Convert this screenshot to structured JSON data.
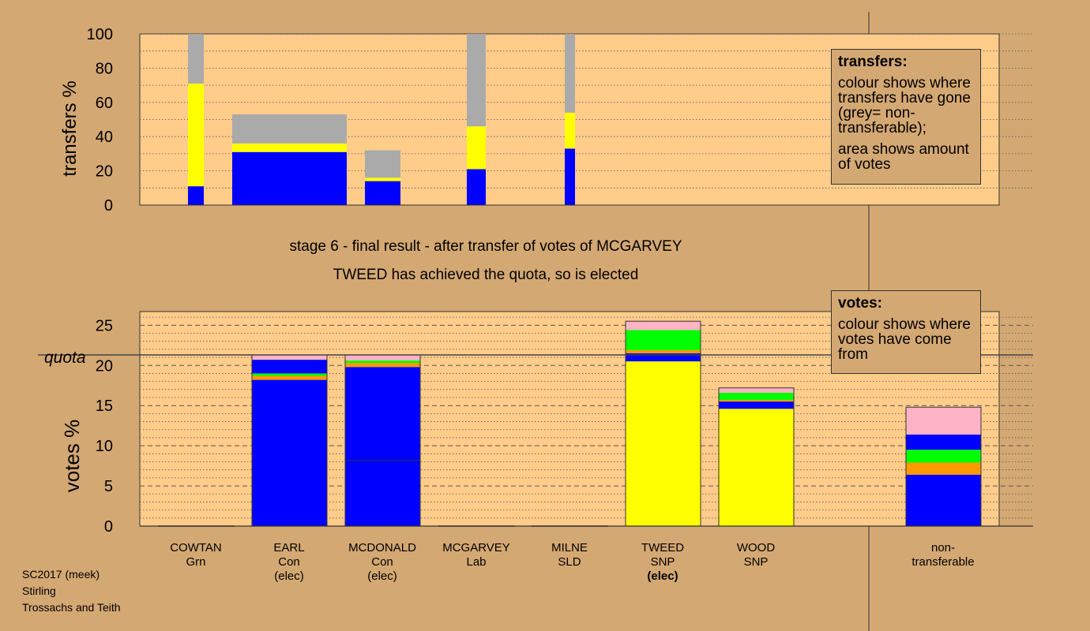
{
  "colors": {
    "background": "#d4a873",
    "plot_area": "#ffcc8a",
    "yellow": "#ffff00",
    "blue": "#0000ff",
    "grey": "#aaaaaa",
    "orange": "#ff9900",
    "green": "#00ff00",
    "pink": "#ffb3c6"
  },
  "stage_text": {
    "line1": "stage 6 - final result - after transfer of votes of MCGARVEY",
    "line2": "TWEED has achieved the quota, so is elected"
  },
  "legends": {
    "transfers": {
      "title": "transfers:",
      "text1": "colour shows where transfers have gone (grey= non-transferable);",
      "text2": "area shows amount of votes"
    },
    "votes": {
      "title": "votes:",
      "text1": "colour shows where votes have come from"
    }
  },
  "candidates": [
    {
      "name": "COWTAN",
      "party": "Grn",
      "status": ""
    },
    {
      "name": "EARL",
      "party": "Con",
      "status": "(elec)"
    },
    {
      "name": "MCDONALD",
      "party": "Con",
      "status": "(elec)"
    },
    {
      "name": "MCGARVEY",
      "party": "Lab",
      "status": ""
    },
    {
      "name": "MILNE",
      "party": "SLD",
      "status": ""
    },
    {
      "name": "TWEED",
      "party": "SNP",
      "status": "(elec)"
    },
    {
      "name": "WOOD",
      "party": "SNP",
      "status": ""
    },
    {
      "name": "non-",
      "party": "transferable",
      "status": ""
    }
  ],
  "footer": {
    "line1": "SC2017 (meek)",
    "line2": "Stirling",
    "line3": "Trossachs and Teith"
  },
  "chart_data": [
    {
      "type": "bar",
      "ylabel": "transfers %",
      "ylim": [
        0,
        100
      ],
      "yticks": [
        0,
        20,
        40,
        60,
        80,
        100
      ],
      "bars": [
        {
          "segments": [
            [
              "blue",
              0,
              11
            ],
            [
              "yellow",
              11,
              71
            ],
            [
              "grey",
              71,
              100
            ]
          ]
        },
        {
          "segments": [
            [
              "blue",
              0,
              31
            ],
            [
              "yellow",
              31,
              36
            ],
            [
              "grey",
              36,
              53
            ]
          ]
        },
        {
          "segments": [
            [
              "blue",
              0,
              14
            ],
            [
              "yellow",
              14,
              16
            ],
            [
              "grey",
              16,
              32
            ]
          ]
        },
        {
          "segments": [
            [
              "blue",
              0,
              21
            ],
            [
              "yellow",
              21,
              46
            ],
            [
              "grey",
              46,
              100
            ]
          ]
        },
        {
          "segments": [
            [
              "blue",
              0,
              33
            ],
            [
              "yellow",
              33,
              54
            ],
            [
              "grey",
              54,
              100
            ]
          ]
        }
      ]
    },
    {
      "type": "bar",
      "ylabel": "votes %",
      "quota_label": "quota",
      "quota": 21.3,
      "ylim": [
        0,
        26.7
      ],
      "yticks": [
        0,
        5,
        10,
        15,
        20,
        25
      ],
      "categories": [
        "COWTAN",
        "EARL",
        "MCDONALD",
        "MCGARVEY",
        "MILNE",
        "TWEED",
        "WOOD",
        "non-transferable"
      ],
      "stacks": [
        {
          "segments": []
        },
        {
          "segments": [
            [
              "blue",
              0,
              18.2
            ],
            [
              "orange",
              18.2,
              18.7
            ],
            [
              "green",
              18.7,
              19.0
            ],
            [
              "blue",
              19.0,
              20.7
            ],
            [
              "pink",
              20.7,
              21.3
            ]
          ],
          "divider": null
        },
        {
          "segments": [
            [
              "blue",
              0,
              19.8
            ],
            [
              "orange",
              19.8,
              20.3
            ],
            [
              "green",
              20.3,
              20.6
            ],
            [
              "pink",
              20.6,
              21.3
            ]
          ],
          "divider": 8.2
        },
        {
          "segments": []
        },
        {
          "segments": []
        },
        {
          "segments": [
            [
              "yellow",
              0,
              20.5
            ],
            [
              "blue",
              20.5,
              21.5
            ],
            [
              "orange",
              21.5,
              21.9
            ],
            [
              "green",
              21.9,
              24.4
            ],
            [
              "pink",
              24.4,
              25.5
            ]
          ],
          "divider": null
        },
        {
          "segments": [
            [
              "yellow",
              0,
              14.6
            ],
            [
              "blue",
              14.6,
              15.5
            ],
            [
              "orange",
              15.5,
              15.7
            ],
            [
              "green",
              15.7,
              16.6
            ],
            [
              "pink",
              16.6,
              17.2
            ]
          ],
          "divider": null
        },
        {
          "segments": [
            [
              "blue",
              0,
              6.4
            ],
            [
              "orange",
              6.4,
              7.9
            ],
            [
              "green",
              7.9,
              9.5
            ],
            [
              "blue",
              9.5,
              11.4
            ],
            [
              "pink",
              11.4,
              14.8
            ]
          ],
          "divider": null
        }
      ]
    }
  ]
}
